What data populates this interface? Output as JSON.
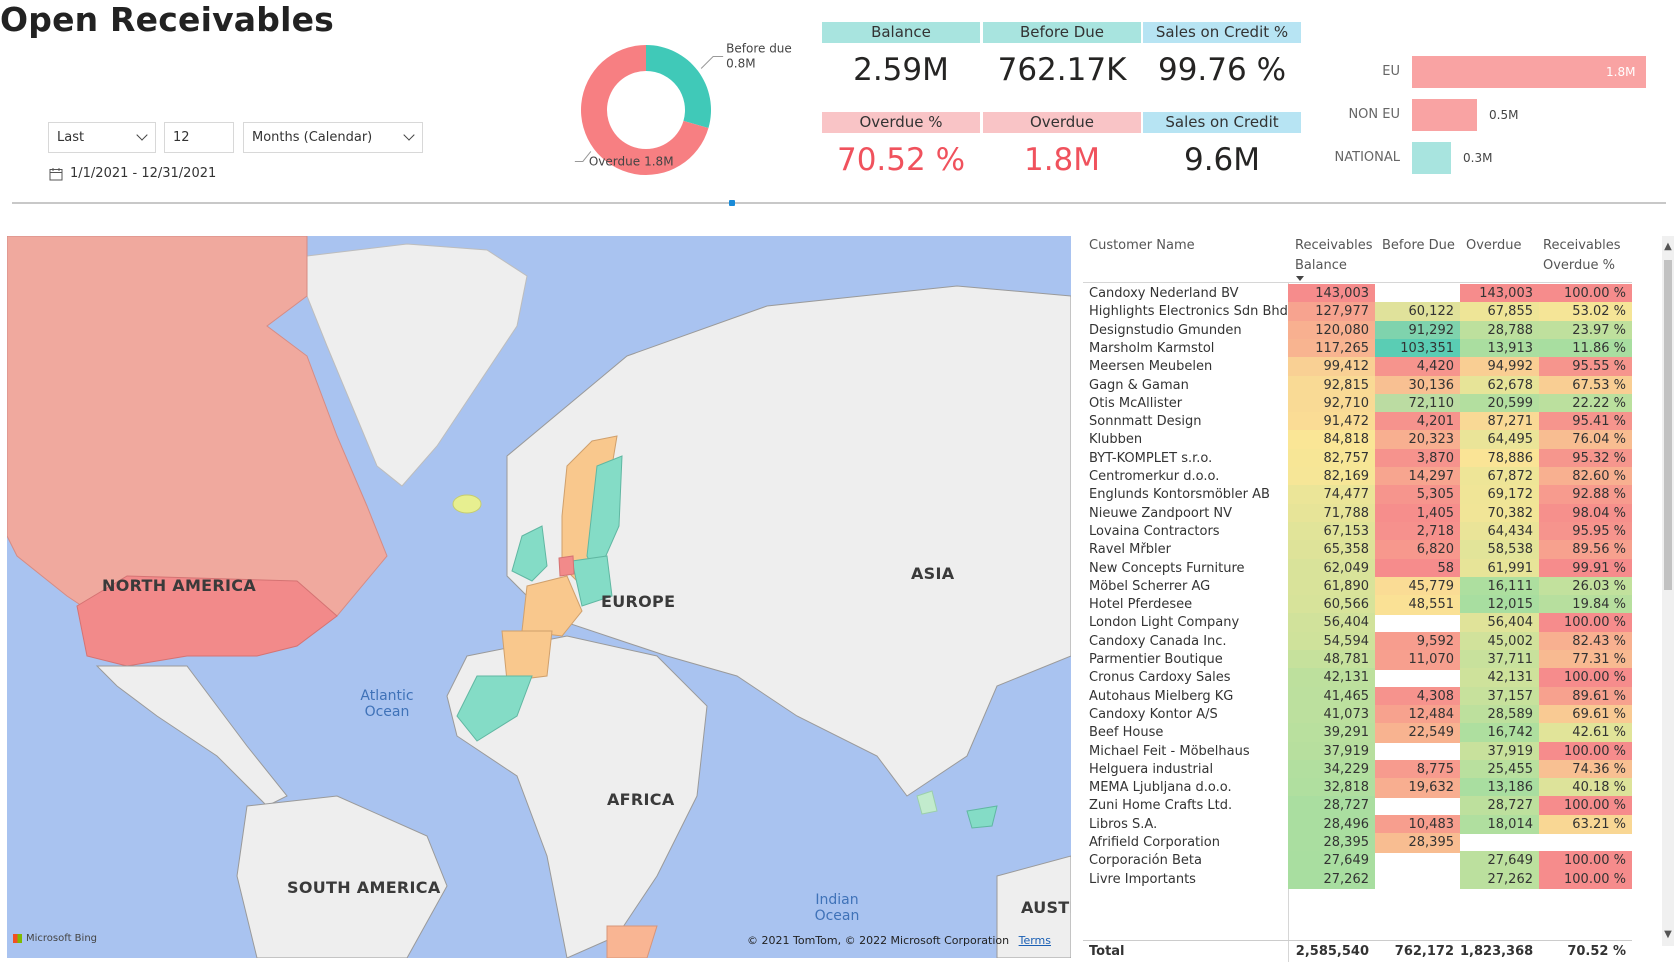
{
  "page": {
    "title": "Open Receivables"
  },
  "slicer": {
    "period_type": "Last",
    "count": "12",
    "unit": "Months (Calendar)",
    "date_range": "1/1/2021 - 12/31/2021"
  },
  "donut": {
    "segments": [
      {
        "label": "Before due",
        "value_label": "0.8M",
        "value": 0.76217,
        "color": "#40c9b8"
      },
      {
        "label": "Overdue",
        "value_label": "1.8M",
        "value": 1.823368,
        "color": "#f77f82"
      }
    ]
  },
  "kpis": [
    {
      "label": "Balance",
      "value": "2.59M",
      "header_color": "#a8e4df",
      "value_color": "#252423"
    },
    {
      "label": "Before Due",
      "value": "762.17K",
      "header_color": "#a8e4df",
      "value_color": "#252423"
    },
    {
      "label": "Sales on Credit %",
      "value": "99.76 %",
      "header_color": "#b7e4f3",
      "value_color": "#252423"
    },
    {
      "label": "Overdue %",
      "value": "70.52 %",
      "header_color": "#f9c4c6",
      "value_color": "#f0525d"
    },
    {
      "label": "Overdue",
      "value": "1.8M",
      "header_color": "#f9c4c6",
      "value_color": "#f0525d"
    },
    {
      "label": "Sales on Credit",
      "value": "9.6M",
      "header_color": "#b7e4f3",
      "value_color": "#252423"
    }
  ],
  "region_bars": {
    "max": 1.8,
    "items": [
      {
        "label": "EU",
        "value": 1.8,
        "value_label": "1.8M",
        "color": "#f9a3a3"
      },
      {
        "label": "NON EU",
        "value": 0.5,
        "value_label": "0.5M",
        "color": "#f9a3a3"
      },
      {
        "label": "NATIONAL",
        "value": 0.3,
        "value_label": "0.3M",
        "color": "#a8e4df"
      }
    ]
  },
  "map": {
    "continents": {
      "north_america": "NORTH AMERICA",
      "south_america": "SOUTH AMERICA",
      "europe": "EUROPE",
      "asia": "ASIA",
      "africa": "AFRICA",
      "australia": "AUSTR"
    },
    "oceans": {
      "atlantic": "Atlantic\nOcean",
      "indian": "Indian\nOcean"
    },
    "attribution": "© 2021 TomTom, © 2022 Microsoft Corporation",
    "terms": "Terms",
    "bing": "Microsoft Bing"
  },
  "table": {
    "columns": [
      "Customer Name",
      "Receivables\nBalance",
      "Before Due",
      "Overdue",
      "Receivables\nOverdue %"
    ],
    "rows": [
      {
        "name": "Candoxy Nederland BV",
        "balance": "143,003",
        "before": "",
        "overdue": "143,003",
        "pct": "100.00 %"
      },
      {
        "name": "Highlights Electronics Sdn Bhd",
        "balance": "127,977",
        "before": "60,122",
        "overdue": "67,855",
        "pct": "53.02 %"
      },
      {
        "name": "Designstudio Gmunden",
        "balance": "120,080",
        "before": "91,292",
        "overdue": "28,788",
        "pct": "23.97 %"
      },
      {
        "name": "Marsholm Karmstol",
        "balance": "117,265",
        "before": "103,351",
        "overdue": "13,913",
        "pct": "11.86 %"
      },
      {
        "name": "Meersen Meubelen",
        "balance": "99,412",
        "before": "4,420",
        "overdue": "94,992",
        "pct": "95.55 %"
      },
      {
        "name": "Gagn & Gaman",
        "balance": "92,815",
        "before": "30,136",
        "overdue": "62,678",
        "pct": "67.53 %"
      },
      {
        "name": "Otis McAllister",
        "balance": "92,710",
        "before": "72,110",
        "overdue": "20,599",
        "pct": "22.22 %"
      },
      {
        "name": "Sonnmatt Design",
        "balance": "91,472",
        "before": "4,201",
        "overdue": "87,271",
        "pct": "95.41 %"
      },
      {
        "name": "Klubben",
        "balance": "84,818",
        "before": "20,323",
        "overdue": "64,495",
        "pct": "76.04 %"
      },
      {
        "name": "BYT-KOMPLET s.r.o.",
        "balance": "82,757",
        "before": "3,870",
        "overdue": "78,886",
        "pct": "95.32 %"
      },
      {
        "name": "Centromerkur d.o.o.",
        "balance": "82,169",
        "before": "14,297",
        "overdue": "67,872",
        "pct": "82.60 %"
      },
      {
        "name": "Englunds Kontorsmöbler AB",
        "balance": "74,477",
        "before": "5,305",
        "overdue": "69,172",
        "pct": "92.88 %"
      },
      {
        "name": "Nieuwe Zandpoort NV",
        "balance": "71,788",
        "before": "1,405",
        "overdue": "70,382",
        "pct": "98.04 %"
      },
      {
        "name": "Lovaina Contractors",
        "balance": "67,153",
        "before": "2,718",
        "overdue": "64,434",
        "pct": "95.95 %"
      },
      {
        "name": "Ravel Mřbler",
        "balance": "65,358",
        "before": "6,820",
        "overdue": "58,538",
        "pct": "89.56 %"
      },
      {
        "name": "New Concepts Furniture",
        "balance": "62,049",
        "before": "58",
        "overdue": "61,991",
        "pct": "99.91 %"
      },
      {
        "name": "Möbel Scherrer AG",
        "balance": "61,890",
        "before": "45,779",
        "overdue": "16,111",
        "pct": "26.03 %"
      },
      {
        "name": "Hotel Pferdesee",
        "balance": "60,566",
        "before": "48,551",
        "overdue": "12,015",
        "pct": "19.84 %"
      },
      {
        "name": "London Light Company",
        "balance": "56,404",
        "before": "",
        "overdue": "56,404",
        "pct": "100.00 %"
      },
      {
        "name": "Candoxy Canada Inc.",
        "balance": "54,594",
        "before": "9,592",
        "overdue": "45,002",
        "pct": "82.43 %"
      },
      {
        "name": "Parmentier Boutique",
        "balance": "48,781",
        "before": "11,070",
        "overdue": "37,711",
        "pct": "77.31 %"
      },
      {
        "name": "Cronus Cardoxy Sales",
        "balance": "42,131",
        "before": "",
        "overdue": "42,131",
        "pct": "100.00 %"
      },
      {
        "name": "Autohaus Mielberg KG",
        "balance": "41,465",
        "before": "4,308",
        "overdue": "37,157",
        "pct": "89.61 %"
      },
      {
        "name": "Candoxy Kontor A/S",
        "balance": "41,073",
        "before": "12,484",
        "overdue": "28,589",
        "pct": "69.61 %"
      },
      {
        "name": "Beef House",
        "balance": "39,291",
        "before": "22,549",
        "overdue": "16,742",
        "pct": "42.61 %"
      },
      {
        "name": "Michael Feit - Möbelhaus",
        "balance": "37,919",
        "before": "",
        "overdue": "37,919",
        "pct": "100.00 %"
      },
      {
        "name": "Helguera industrial",
        "balance": "34,229",
        "before": "8,775",
        "overdue": "25,455",
        "pct": "74.36 %"
      },
      {
        "name": "MEMA Ljubljana d.o.o.",
        "balance": "32,818",
        "before": "19,632",
        "overdue": "13,186",
        "pct": "40.18 %"
      },
      {
        "name": "Zuni Home Crafts Ltd.",
        "balance": "28,727",
        "before": "",
        "overdue": "28,727",
        "pct": "100.00 %"
      },
      {
        "name": "Libros S.A.",
        "balance": "28,496",
        "before": "10,483",
        "overdue": "18,014",
        "pct": "63.21 %"
      },
      {
        "name": "Afrifield Corporation",
        "balance": "28,395",
        "before": "28,395",
        "overdue": "",
        "pct": ""
      },
      {
        "name": "Corporación Beta",
        "balance": "27,649",
        "before": "",
        "overdue": "27,649",
        "pct": "100.00 %"
      },
      {
        "name": "Livre Importants",
        "balance": "27,262",
        "before": "",
        "overdue": "27,262",
        "pct": "100.00 %"
      }
    ],
    "total": {
      "label": "Total",
      "balance": "2,585,540",
      "before": "762,172",
      "overdue": "1,823,368",
      "pct": "70.52 %"
    }
  }
}
